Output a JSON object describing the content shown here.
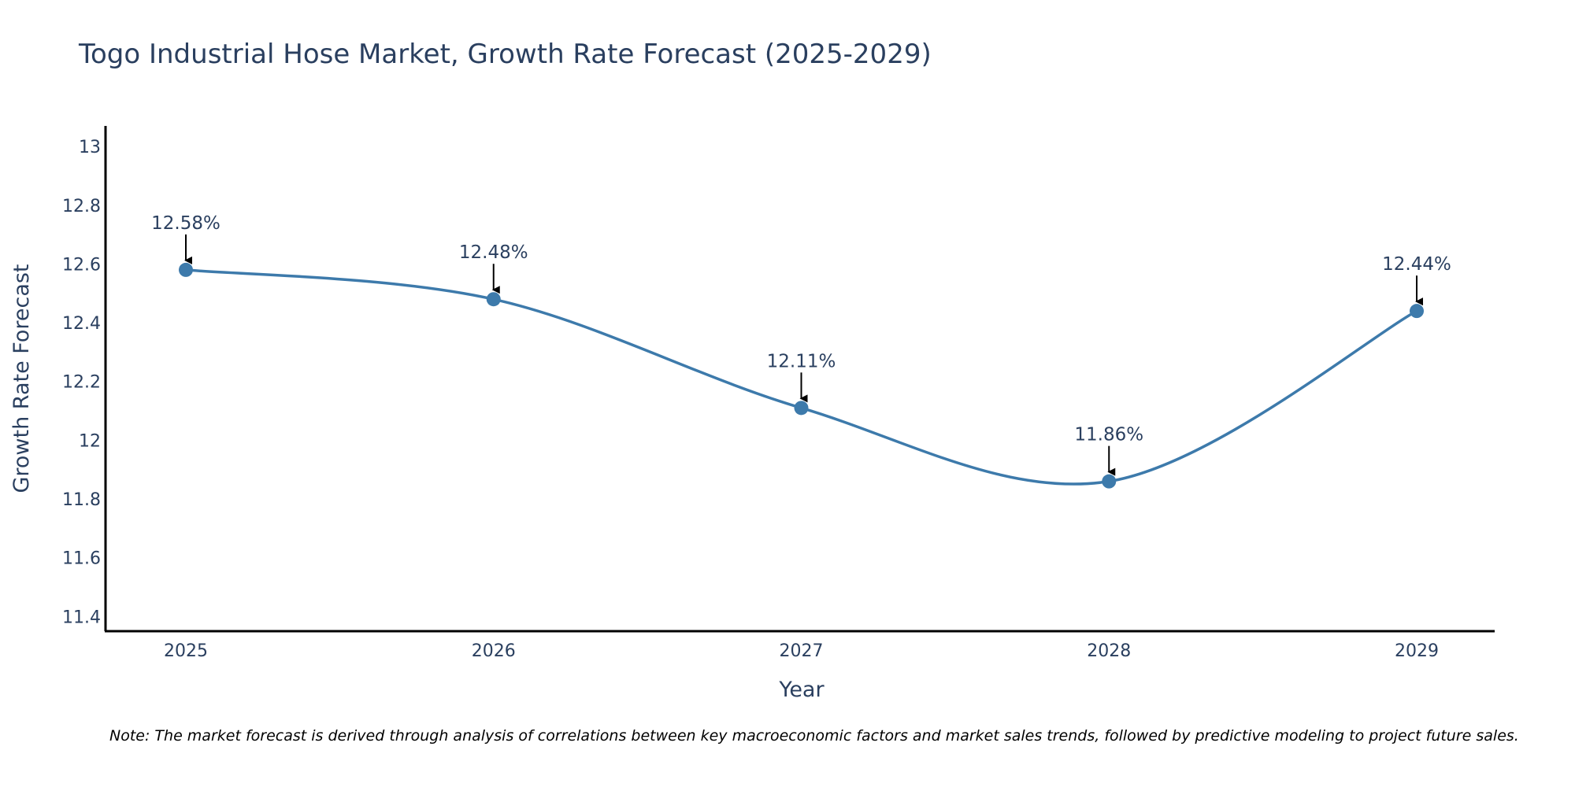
{
  "chart_data": {
    "type": "line",
    "title": "Togo Industrial Hose Market, Growth Rate Forecast (2025-2029)",
    "xlabel": "Year",
    "ylabel": "Growth Rate Forecast",
    "categories": [
      "2025",
      "2026",
      "2027",
      "2028",
      "2029"
    ],
    "series": [
      {
        "name": "Growth Rate Forecast",
        "values": [
          12.58,
          12.48,
          12.11,
          11.86,
          12.44
        ],
        "labels": [
          "12.58%",
          "12.48%",
          "12.11%",
          "11.86%",
          "12.44%"
        ],
        "color": "#3d7aab",
        "smooth": true
      }
    ],
    "yticks": [
      11.4,
      11.6,
      11.8,
      12,
      12.2,
      12.4,
      12.6,
      12.8,
      13
    ],
    "ytick_labels": [
      "11.4",
      "11.6",
      "11.8",
      "12",
      "12.2",
      "12.4",
      "12.6",
      "12.8",
      "13"
    ],
    "ylim": [
      11.35,
      13.07
    ],
    "grid": false,
    "annotation_arrow_color": "#000000",
    "note": "Note: The market forecast is derived through analysis of correlations between key macroeconomic factors and market sales trends, followed by predictive modeling to project future sales."
  }
}
